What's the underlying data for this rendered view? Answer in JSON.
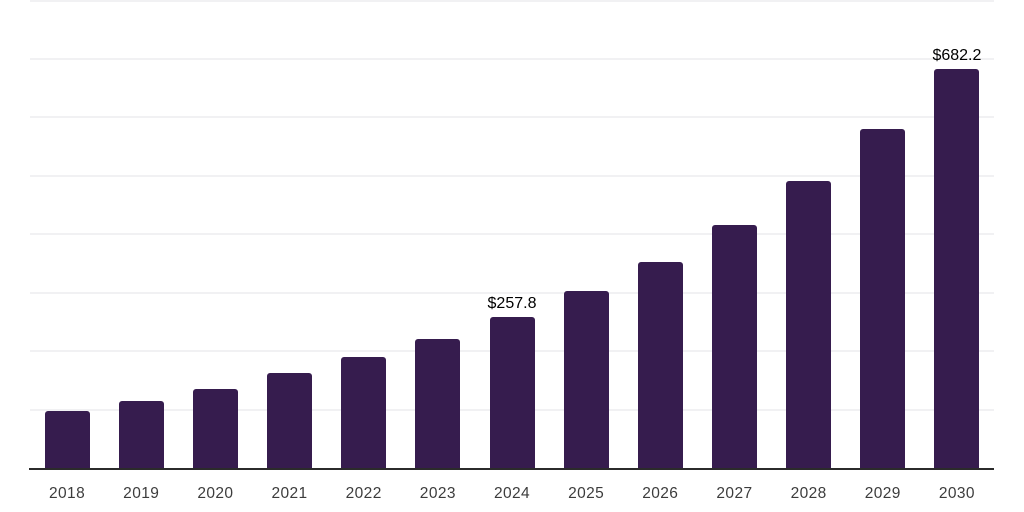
{
  "chart_data": {
    "type": "bar",
    "title": "",
    "xlabel": "",
    "ylabel": "",
    "categories": [
      "2018",
      "2019",
      "2020",
      "2021",
      "2022",
      "2023",
      "2024",
      "2025",
      "2026",
      "2027",
      "2028",
      "2029",
      "2030"
    ],
    "values": [
      97.9,
      114.9,
      134.9,
      162.2,
      189.5,
      220.2,
      257.8,
      302.2,
      351.7,
      414.9,
      490.0,
      578.8,
      682.2
    ],
    "data_labels": [
      "",
      "",
      "",
      "",
      "",
      "",
      "$257.8",
      "",
      "",
      "",
      "",
      "",
      "$682.2"
    ],
    "ylim": [
      0,
      800
    ],
    "y_gridlines": [
      100,
      200,
      300,
      400,
      500,
      600,
      700,
      800
    ],
    "grid": "horizontal-only",
    "legend_position": "none",
    "colors": {
      "bar": "#361c4e",
      "gridline": "#f1f1f3",
      "axis_line": "#2b2b2b",
      "tick_label": "#3c3c3c",
      "data_label": "#000000",
      "background": "#ffffff"
    }
  }
}
